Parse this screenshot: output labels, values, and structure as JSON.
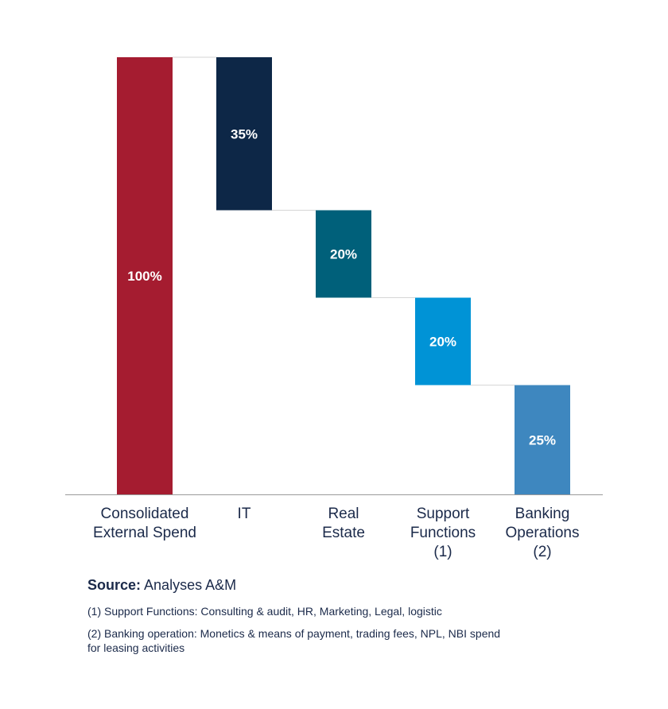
{
  "chart_data": {
    "type": "bar",
    "subtype": "waterfall",
    "categories": [
      [
        "Consolidated",
        "External Spend"
      ],
      [
        "IT"
      ],
      [
        "Real",
        "Estate"
      ],
      [
        "Support",
        "Functions",
        "(1)"
      ],
      [
        "Banking",
        "Operations",
        "(2)"
      ]
    ],
    "values": [
      100,
      35,
      20,
      20,
      25
    ],
    "value_labels": [
      "100%",
      "35%",
      "20%",
      "20%",
      "25%"
    ],
    "ylim": [
      0,
      100
    ],
    "grid": false,
    "legend": "none",
    "colors": [
      "#A51C30",
      "#0D2747",
      "#00607A",
      "#0093D6",
      "#3E87BF"
    ],
    "connector_color": "#d6d6d6",
    "axis_color": "#9a9a9a"
  },
  "footer": {
    "source_label": "Source:",
    "source_text": " Analyses A&M",
    "note_1": "(1) Support Functions: Consulting & audit, HR, Marketing, Legal, logistic",
    "note_2": "(2) Banking operation: Monetics & means of payment, trading fees, NPL, NBI spend for leasing activities"
  }
}
